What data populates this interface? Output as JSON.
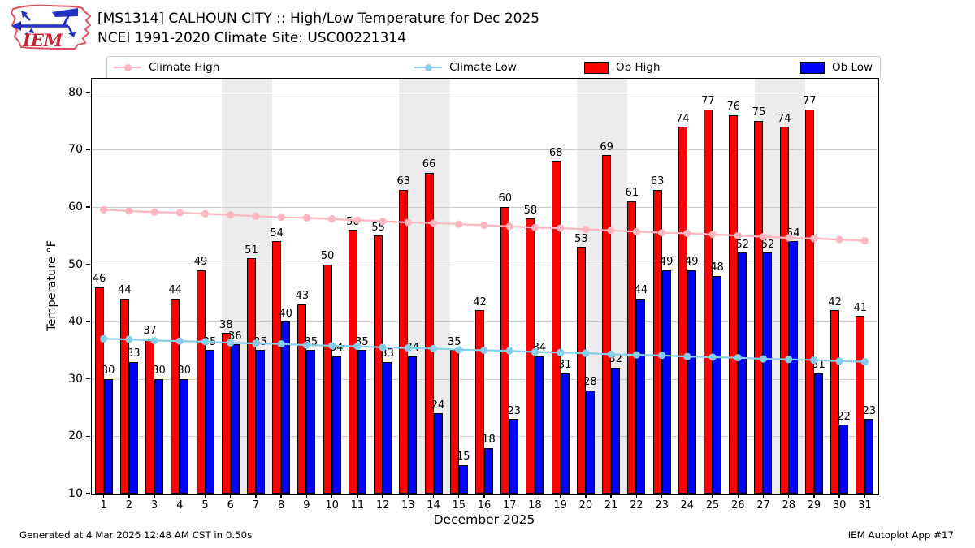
{
  "header": {
    "title_line1": "[MS1314] CALHOUN CITY :: High/Low Temperature for Dec 2025",
    "title_line2": "NCEI 1991-2020 Climate Site: USC00221314",
    "logo_text": "IEM"
  },
  "legend": {
    "items": [
      {
        "label": "Climate High",
        "type": "line",
        "color": "#ffb6c1"
      },
      {
        "label": "Climate Low",
        "type": "line",
        "color": "#87ceeb"
      },
      {
        "label": "Ob High",
        "type": "patch",
        "color": "#ff0000"
      },
      {
        "label": "Ob Low",
        "type": "patch",
        "color": "#0000ff"
      }
    ]
  },
  "chart_data": {
    "type": "bar",
    "title": "[MS1314] CALHOUN CITY :: High/Low Temperature for Dec 2025",
    "subtitle": "NCEI 1991-2020 Climate Site: USC00221314",
    "xlabel": "December 2025",
    "ylabel": "Temperature °F",
    "ylim": [
      10,
      82.5
    ],
    "yticks": [
      10,
      20,
      30,
      40,
      50,
      60,
      70,
      80
    ],
    "grid": true,
    "legend_position": "top",
    "days": [
      1,
      2,
      3,
      4,
      5,
      6,
      7,
      8,
      9,
      10,
      11,
      12,
      13,
      14,
      15,
      16,
      17,
      18,
      19,
      20,
      21,
      22,
      23,
      24,
      25,
      26,
      27,
      28,
      29,
      30,
      31
    ],
    "series": [
      {
        "name": "Ob High",
        "type": "bar",
        "color": "#ff0000",
        "values": [
          46,
          44,
          37,
          44,
          49,
          38,
          51,
          54,
          43,
          50,
          56,
          55,
          63,
          66,
          35,
          42,
          60,
          58,
          68,
          53,
          69,
          61,
          63,
          74,
          77,
          76,
          75,
          74,
          77,
          42,
          41
        ]
      },
      {
        "name": "Ob Low",
        "type": "bar",
        "color": "#0000ff",
        "values": [
          30,
          33,
          30,
          30,
          35,
          36,
          35,
          40,
          35,
          34,
          35,
          33,
          34,
          24,
          15,
          18,
          23,
          34,
          31,
          28,
          32,
          44,
          49,
          49,
          48,
          52,
          52,
          54,
          31,
          22,
          23
        ]
      },
      {
        "name": "Climate High",
        "type": "line",
        "color": "#ffb6c1",
        "values": [
          59.5,
          59.3,
          59.1,
          59.0,
          58.8,
          58.6,
          58.4,
          58.2,
          58.1,
          57.9,
          57.7,
          57.5,
          57.3,
          57.2,
          57.0,
          56.8,
          56.6,
          56.4,
          56.3,
          56.1,
          55.9,
          55.7,
          55.5,
          55.4,
          55.2,
          55.0,
          54.8,
          54.6,
          54.5,
          54.3,
          54.1
        ]
      },
      {
        "name": "Climate Low",
        "type": "line",
        "color": "#87ceeb",
        "values": [
          37.0,
          36.9,
          36.7,
          36.6,
          36.5,
          36.3,
          36.2,
          36.1,
          35.9,
          35.8,
          35.7,
          35.5,
          35.4,
          35.3,
          35.1,
          35.0,
          34.9,
          34.7,
          34.6,
          34.5,
          34.3,
          34.2,
          34.1,
          33.9,
          33.8,
          33.7,
          33.5,
          33.4,
          33.3,
          33.1,
          33.0
        ]
      }
    ],
    "weekend_bands": [
      [
        6,
        7
      ],
      [
        13,
        14
      ],
      [
        20,
        21
      ],
      [
        27,
        28
      ]
    ],
    "band_color": "#ececec",
    "grid_color": "#cccccc"
  },
  "footer": {
    "left": "Generated at 4 Mar 2026 12:48 AM CST in 0.50s",
    "right": "IEM Autoplot App #17"
  }
}
